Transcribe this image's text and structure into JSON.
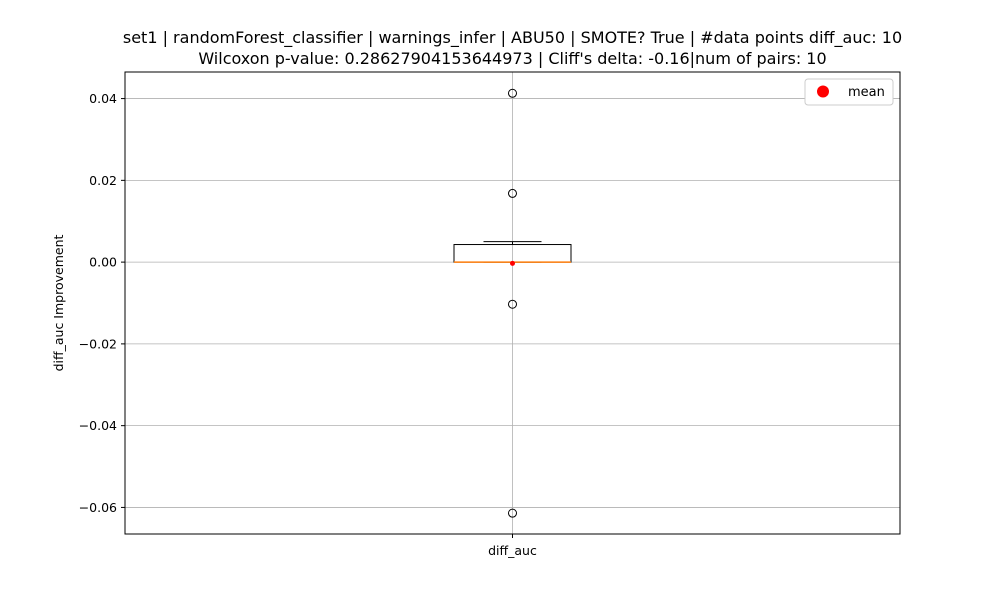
{
  "chart_data": {
    "type": "box",
    "title_lines": [
      "set1 | randomForest_classifier | warnings_infer | ABU50 | SMOTE? True | #data points diff_auc: 10",
      "Wilcoxon p-value: 0.28627904153644973 | Cliff's delta: -0.16|num of pairs: 10"
    ],
    "xlabel": "",
    "ylabel": "diff_auc Improvement",
    "categories": [
      "diff_auc"
    ],
    "ylim": [
      -0.0665,
      0.0465
    ],
    "yticks": [
      -0.06,
      -0.04,
      -0.02,
      0.0,
      0.02,
      0.04
    ],
    "ytick_labels": [
      "−0.06",
      "−0.04",
      "−0.02",
      "0.00",
      "0.02",
      "0.04"
    ],
    "grid": true,
    "box": {
      "name": "diff_auc",
      "q1": 0.0,
      "median": 0.0,
      "q3": 0.0043,
      "whisker_low": 0.0,
      "whisker_high": 0.005,
      "mean": -0.0003,
      "outliers": [
        0.0413,
        0.0168,
        -0.0103,
        -0.0614
      ]
    },
    "legend": {
      "position": "top-right",
      "entries": [
        {
          "label": "mean",
          "color": "#ff0000"
        }
      ]
    },
    "colors": {
      "median": "#ff7f0e",
      "mean": "#ff0000",
      "box": "#000000",
      "grid": "#b0b0b0"
    }
  }
}
